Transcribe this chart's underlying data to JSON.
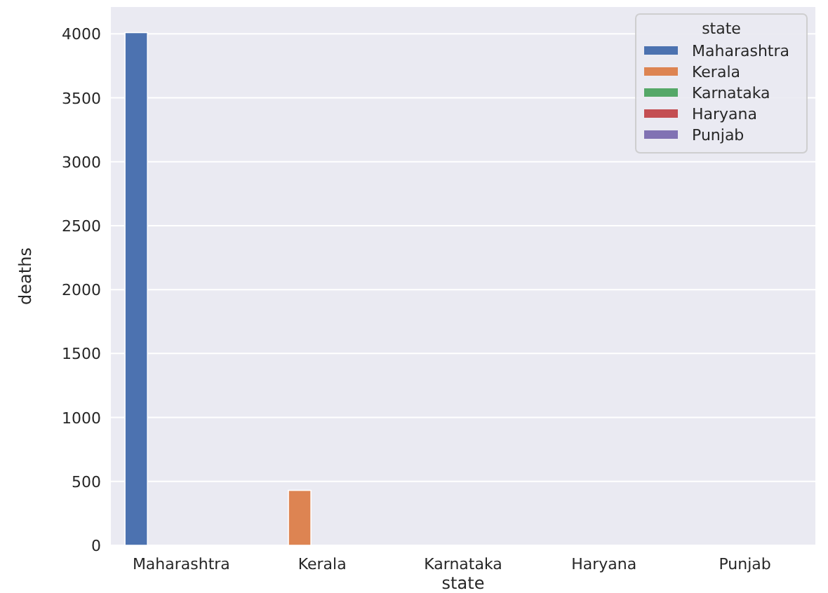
{
  "chart_data": {
    "type": "bar",
    "xlabel": "state",
    "ylabel": "deaths",
    "legend_title": "state",
    "categories": [
      "Maharashtra",
      "Kerala",
      "Karnataka",
      "Haryana",
      "Punjab"
    ],
    "series": [
      {
        "name": "Maharashtra",
        "color": "#4c72b0",
        "values": [
          4010,
          null,
          null,
          null,
          null
        ]
      },
      {
        "name": "Kerala",
        "color": "#dd8452",
        "values": [
          null,
          430,
          null,
          null,
          null
        ]
      },
      {
        "name": "Karnataka",
        "color": "#55a868",
        "values": [
          null,
          null,
          0,
          null,
          null
        ]
      },
      {
        "name": "Haryana",
        "color": "#c44e52",
        "values": [
          null,
          null,
          null,
          0,
          null
        ]
      },
      {
        "name": "Punjab",
        "color": "#8172b3",
        "values": [
          null,
          null,
          null,
          null,
          0
        ]
      }
    ],
    "ylim": [
      0,
      4210
    ],
    "yticks": [
      0,
      500,
      1000,
      1500,
      2000,
      2500,
      3000,
      3500,
      4000
    ],
    "grid": "y",
    "legend": "top right"
  }
}
